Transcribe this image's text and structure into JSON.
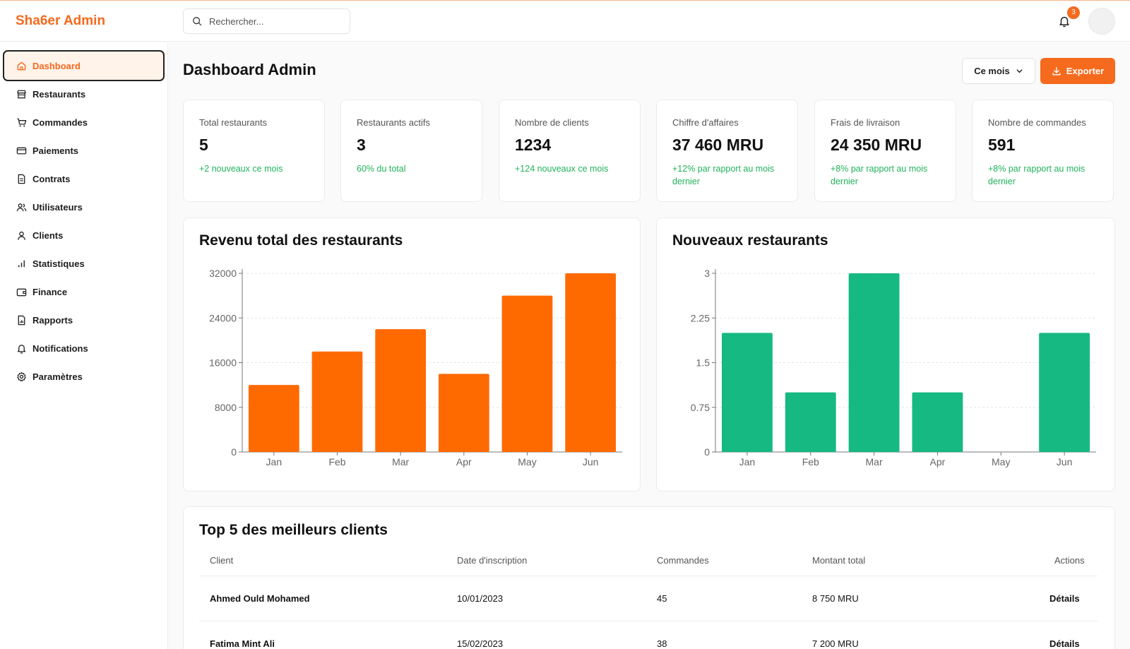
{
  "app": {
    "title": "Sha6er Admin"
  },
  "search": {
    "placeholder": "Rechercher..."
  },
  "notifications": {
    "count": "3"
  },
  "sidebar": {
    "items": [
      {
        "label": "Dashboard",
        "icon": "home-icon"
      },
      {
        "label": "Restaurants",
        "icon": "store-icon"
      },
      {
        "label": "Commandes",
        "icon": "cart-icon"
      },
      {
        "label": "Paiements",
        "icon": "credit-card-icon"
      },
      {
        "label": "Contrats",
        "icon": "document-icon"
      },
      {
        "label": "Utilisateurs",
        "icon": "users-icon"
      },
      {
        "label": "Clients",
        "icon": "user-icon"
      },
      {
        "label": "Statistiques",
        "icon": "bar-chart-icon"
      },
      {
        "label": "Finance",
        "icon": "wallet-icon"
      },
      {
        "label": "Rapports",
        "icon": "report-icon"
      },
      {
        "label": "Notifications",
        "icon": "bell-icon"
      },
      {
        "label": "Paramètres",
        "icon": "gear-icon"
      }
    ],
    "active": "Dashboard"
  },
  "page": {
    "title": "Dashboard Admin",
    "period": "Ce mois",
    "export_label": "Exporter"
  },
  "stats": [
    {
      "label": "Total restaurants",
      "value": "5",
      "sub": "+2 nouveaux ce mois"
    },
    {
      "label": "Restaurants actifs",
      "value": "3",
      "sub": "60% du total"
    },
    {
      "label": "Nombre de clients",
      "value": "1234",
      "sub": "+124 nouveaux ce mois"
    },
    {
      "label": "Chiffre d'affaires",
      "value": "37 460 MRU",
      "sub": "+12% par rapport au mois dernier"
    },
    {
      "label": "Frais de livraison",
      "value": "24 350 MRU",
      "sub": "+8% par rapport au mois dernier"
    },
    {
      "label": "Nombre de commandes",
      "value": "591",
      "sub": "+8% par rapport au mois dernier"
    }
  ],
  "colors": {
    "accent": "#f56a1d",
    "revenue_bar": "#ff6a00",
    "new_bar": "#16b981",
    "positive": "#22b35c"
  },
  "chart_data": [
    {
      "type": "bar",
      "title": "Revenu total des restaurants",
      "categories": [
        "Jan",
        "Feb",
        "Mar",
        "Apr",
        "May",
        "Jun"
      ],
      "values": [
        12000,
        18000,
        22000,
        14000,
        28000,
        32000
      ],
      "yticks": [
        "0",
        "8000",
        "16000",
        "24000",
        "32000"
      ],
      "ylim": [
        0,
        32000
      ],
      "grid": true
    },
    {
      "type": "bar",
      "title": "Nouveaux restaurants",
      "categories": [
        "Jan",
        "Feb",
        "Mar",
        "Apr",
        "May",
        "Jun"
      ],
      "values": [
        2,
        1,
        3,
        1,
        0,
        2
      ],
      "yticks": [
        "0",
        "0.75",
        "1.5",
        "2.25",
        "3"
      ],
      "ylim": [
        0,
        3
      ],
      "grid": true
    }
  ],
  "top_clients": {
    "title": "Top 5 des meilleurs clients",
    "columns": [
      "Client",
      "Date d'inscription",
      "Commandes",
      "Montant total",
      "Actions"
    ],
    "rows": [
      {
        "client": "Ahmed Ould Mohamed",
        "date": "10/01/2023",
        "orders": "45",
        "amount": "8 750 MRU",
        "action": "Détails"
      },
      {
        "client": "Fatima Mint Ali",
        "date": "15/02/2023",
        "orders": "38",
        "amount": "7 200 MRU",
        "action": "Détails"
      }
    ]
  }
}
